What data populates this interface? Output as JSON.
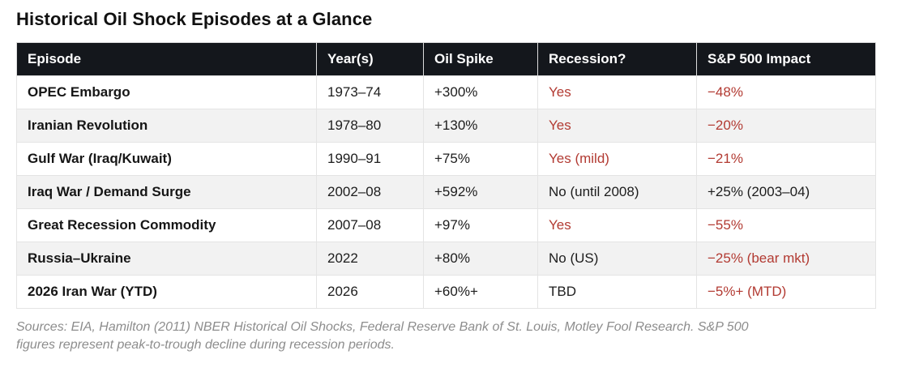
{
  "title": "Historical Oil Shock Episodes at a Glance",
  "colors": {
    "header_bg": "#14171c",
    "negative_red": "#b23a32",
    "zebra_row": "#f2f2f2"
  },
  "table": {
    "columns": [
      "Episode",
      "Year(s)",
      "Oil Spike",
      "Recession?",
      "S&P 500 Impact"
    ],
    "rows": [
      {
        "episode": "OPEC Embargo",
        "years": "1973–74",
        "oil_spike": "+300%",
        "recession": "Yes",
        "recession_red": true,
        "sp500": "−48%",
        "sp500_red": true
      },
      {
        "episode": "Iranian Revolution",
        "years": "1978–80",
        "oil_spike": "+130%",
        "recession": "Yes",
        "recession_red": true,
        "sp500": "−20%",
        "sp500_red": true
      },
      {
        "episode": "Gulf War (Iraq/Kuwait)",
        "years": "1990–91",
        "oil_spike": "+75%",
        "recession": "Yes (mild)",
        "recession_red": true,
        "sp500": "−21%",
        "sp500_red": true
      },
      {
        "episode": "Iraq War / Demand Surge",
        "years": "2002–08",
        "oil_spike": "+592%",
        "recession": "No (until 2008)",
        "recession_red": false,
        "sp500": "+25% (2003–04)",
        "sp500_red": false
      },
      {
        "episode": "Great Recession Commodity",
        "years": "2007–08",
        "oil_spike": "+97%",
        "recession": "Yes",
        "recession_red": true,
        "sp500": "−55%",
        "sp500_red": true
      },
      {
        "episode": "Russia–Ukraine",
        "years": "2022",
        "oil_spike": "+80%",
        "recession": "No (US)",
        "recession_red": false,
        "sp500": "−25% (bear mkt)",
        "sp500_red": true
      },
      {
        "episode": "2026 Iran War (YTD)",
        "years": "2026",
        "oil_spike": "+60%+",
        "recession": "TBD",
        "recession_red": false,
        "sp500": "−5%+ (MTD)",
        "sp500_red": true
      }
    ]
  },
  "footnote": "Sources: EIA, Hamilton (2011) NBER Historical Oil Shocks, Federal Reserve Bank of St. Louis, Motley Fool Research. S&P 500 figures represent peak-to-trough decline during recession periods."
}
